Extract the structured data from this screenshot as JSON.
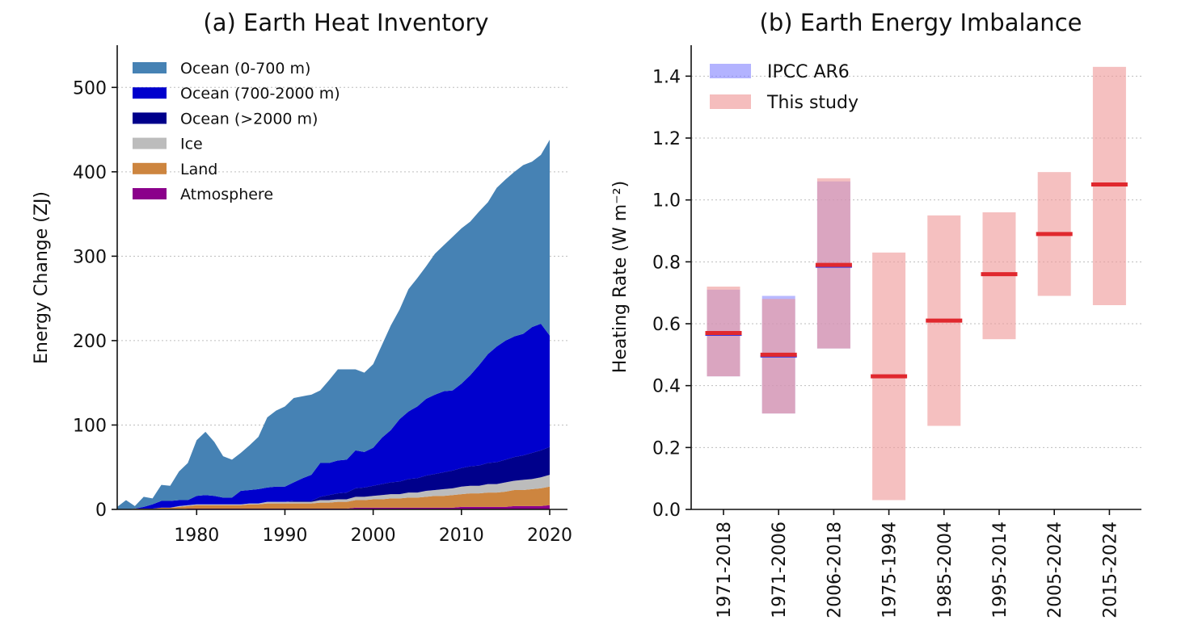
{
  "chart_data": [
    {
      "type": "area",
      "title": "(a) Earth Heat Inventory",
      "xlabel": "",
      "ylabel": "Energy Change (ZJ)",
      "xlim": [
        1971,
        2020
      ],
      "ylim": [
        0,
        550
      ],
      "xticks": [
        1980,
        1990,
        2000,
        2010,
        2020
      ],
      "yticks": [
        0,
        100,
        200,
        300,
        400,
        500
      ],
      "grid": "horizontal-dotted",
      "legend_position": "top-left",
      "stacked": true,
      "x": [
        1971,
        1972,
        1973,
        1974,
        1975,
        1976,
        1977,
        1978,
        1979,
        1980,
        1981,
        1982,
        1983,
        1984,
        1985,
        1986,
        1987,
        1988,
        1989,
        1990,
        1991,
        1992,
        1993,
        1994,
        1995,
        1996,
        1997,
        1998,
        1999,
        2000,
        2001,
        2002,
        2003,
        2004,
        2005,
        2006,
        2007,
        2008,
        2009,
        2010,
        2011,
        2012,
        2013,
        2014,
        2015,
        2016,
        2017,
        2018,
        2019,
        2020
      ],
      "series": [
        {
          "name": "Atmosphere",
          "color": "#8b008b",
          "values": [
            0,
            0,
            0,
            0,
            0,
            0,
            0,
            0,
            1,
            1,
            1,
            1,
            1,
            1,
            1,
            1,
            1,
            1,
            1,
            1,
            1,
            1,
            1,
            1,
            1,
            1,
            1,
            2,
            2,
            2,
            2,
            2,
            2,
            2,
            2,
            2,
            2,
            2,
            2,
            3,
            3,
            3,
            3,
            3,
            3,
            4,
            4,
            4,
            4,
            5
          ]
        },
        {
          "name": "Land",
          "color": "#cd853f",
          "values": [
            0,
            0,
            1,
            1,
            1,
            2,
            2,
            3,
            3,
            4,
            4,
            4,
            4,
            4,
            4,
            5,
            5,
            6,
            6,
            6,
            6,
            6,
            6,
            7,
            7,
            8,
            8,
            9,
            9,
            10,
            10,
            11,
            11,
            12,
            12,
            13,
            14,
            14,
            15,
            15,
            16,
            16,
            17,
            17,
            18,
            19,
            19,
            20,
            21,
            22
          ]
        },
        {
          "name": "Ice",
          "color": "#bcbcbc",
          "values": [
            0,
            0,
            0,
            0,
            0,
            0,
            0,
            1,
            1,
            1,
            1,
            1,
            1,
            1,
            1,
            1,
            1,
            2,
            2,
            2,
            2,
            2,
            2,
            3,
            3,
            3,
            3,
            4,
            4,
            4,
            5,
            5,
            5,
            6,
            6,
            7,
            7,
            8,
            8,
            9,
            9,
            9,
            10,
            10,
            11,
            11,
            12,
            12,
            13,
            14
          ]
        },
        {
          "name": "Ocean (>2000 m)",
          "color": "#00008b",
          "values": [
            0,
            0,
            0,
            0,
            0,
            0,
            0,
            0,
            0,
            0,
            0,
            0,
            0,
            0,
            0,
            0,
            0,
            0,
            0,
            0,
            1,
            1,
            1,
            4,
            6,
            7,
            8,
            10,
            11,
            12,
            13,
            14,
            15,
            16,
            17,
            18,
            19,
            20,
            21,
            22,
            23,
            24,
            25,
            26,
            27,
            28,
            29,
            31,
            32,
            33
          ]
        },
        {
          "name": "Ocean (700-2000 m)",
          "color": "#0000cd",
          "values": [
            0,
            0,
            0,
            2,
            5,
            8,
            8,
            7,
            6,
            10,
            11,
            10,
            8,
            8,
            16,
            16,
            17,
            17,
            18,
            18,
            22,
            27,
            31,
            40,
            38,
            39,
            39,
            45,
            42,
            45,
            55,
            62,
            74,
            80,
            85,
            91,
            94,
            96,
            95,
            100,
            108,
            119,
            129,
            137,
            141,
            143,
            144,
            149,
            150,
            132
          ]
        },
        {
          "name": "Ocean (0-700 m)",
          "color": "#4682b4",
          "values": [
            3,
            11,
            3,
            12,
            7,
            19,
            18,
            34,
            44,
            66,
            75,
            64,
            49,
            45,
            45,
            53,
            62,
            83,
            90,
            95,
            100,
            97,
            95,
            86,
            98,
            108,
            107,
            96,
            94,
            99,
            110,
            124,
            130,
            145,
            152,
            157,
            167,
            173,
            182,
            184,
            182,
            182,
            180,
            188,
            191,
            195,
            200,
            196,
            200,
            232
          ]
        }
      ]
    },
    {
      "type": "bar",
      "title": "(b) Earth Energy Imbalance",
      "xlabel": "",
      "ylabel": "Heating Rate (W m⁻²)",
      "ylim": [
        0,
        1.5
      ],
      "yticks": [
        0.0,
        0.2,
        0.4,
        0.6,
        0.8,
        1.0,
        1.2,
        1.4
      ],
      "grid": "horizontal-dotted",
      "legend_position": "top-left",
      "categories": [
        "1971-2018",
        "1971-2006",
        "2006-2018",
        "1975-1994",
        "1985-2004",
        "1995-2014",
        "2005-2024",
        "2015-2024"
      ],
      "series": [
        {
          "name": "IPCC AR6",
          "color": "#8080ff",
          "low": [
            0.43,
            0.31,
            0.52,
            null,
            null,
            null,
            null,
            null
          ],
          "high": [
            0.71,
            0.69,
            1.06,
            null,
            null,
            null,
            null,
            null
          ],
          "central": [
            0.57,
            0.5,
            0.79,
            null,
            null,
            null,
            null,
            null
          ]
        },
        {
          "name": "This study",
          "color": "#ef9a9a",
          "low": [
            0.43,
            0.31,
            0.52,
            0.03,
            0.27,
            0.55,
            0.69,
            0.66
          ],
          "high": [
            0.72,
            0.68,
            1.07,
            0.83,
            0.95,
            0.96,
            1.09,
            1.43
          ],
          "central": [
            0.57,
            0.5,
            0.79,
            0.43,
            0.61,
            0.76,
            0.89,
            1.05
          ]
        }
      ],
      "central_line_color": "#e0282e"
    }
  ]
}
